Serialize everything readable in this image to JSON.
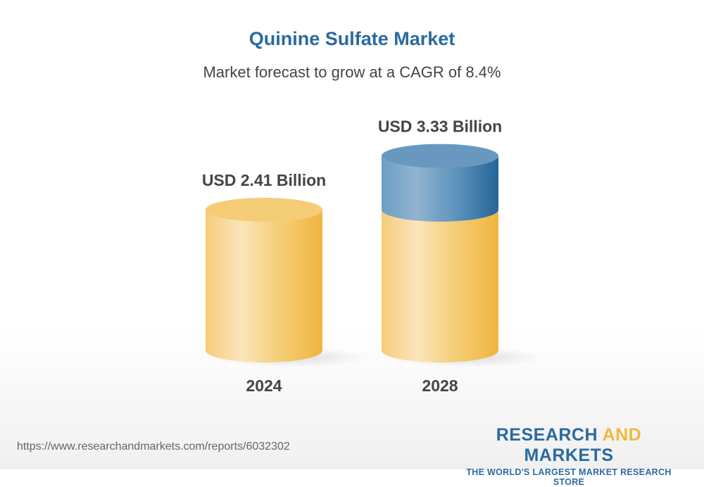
{
  "title": "Quinine Sulfate Market",
  "subtitle": "Market forecast to grow at a CAGR of 8.4%",
  "footer": {
    "url": "https://www.researchandmarkets.com/reports/6032302",
    "logo_part1": "RESEARCH ",
    "logo_part2": "AND",
    "logo_part3": " MARKETS",
    "logo_tagline": "THE WORLD'S LARGEST MARKET RESEARCH STORE"
  },
  "colors": {
    "base": "#f2b93b",
    "growth": "#2a6aa0",
    "title": "#2a6aa0"
  },
  "chart_data": {
    "type": "bar",
    "style": "3d-cylinder",
    "title": "Quinine Sulfate Market",
    "categories": [
      "2024",
      "2028"
    ],
    "values": [
      2.41,
      3.33
    ],
    "data_labels": [
      "USD 2.41 Billion",
      "USD 3.33 Billion"
    ],
    "unit": "USD Billion",
    "cagr": "8.4%"
  }
}
